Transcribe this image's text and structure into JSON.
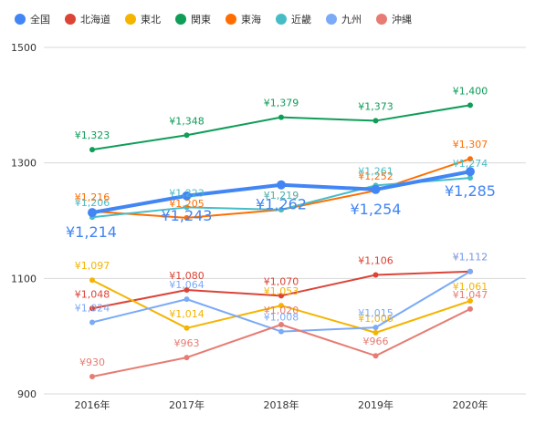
{
  "chart_data": {
    "type": "line",
    "x": [
      "2016年",
      "2017年",
      "2018年",
      "2019年",
      "2020年"
    ],
    "ylim": [
      900,
      1500
    ],
    "yticks": [
      "900",
      "1100",
      "1300",
      "1500"
    ],
    "grid": true,
    "legend_position": "top",
    "series": [
      {
        "name": "全国",
        "color": "#4285f4",
        "values": [
          1214,
          1243,
          1262,
          1254,
          1285
        ],
        "labels": [
          "¥1,214",
          "¥1,243",
          "¥1,262",
          "¥1,254",
          "¥1,285"
        ],
        "emphasis": true
      },
      {
        "name": "北海道",
        "color": "#db4437",
        "values": [
          1048,
          1080,
          1070,
          1106,
          1112
        ],
        "labels": [
          "¥1,048",
          "¥1,080",
          "¥1,070",
          "¥1,106",
          "¥1,112"
        ]
      },
      {
        "name": "東北",
        "color": "#f4b400",
        "values": [
          1097,
          1014,
          1053,
          1006,
          1061
        ],
        "labels": [
          "¥1,097",
          "¥1,014",
          "¥1,053",
          "¥1,006",
          "¥1,061"
        ]
      },
      {
        "name": "関東",
        "color": "#0f9d58",
        "values": [
          1323,
          1348,
          1379,
          1373,
          1400
        ],
        "labels": [
          "¥1,323",
          "¥1,348",
          "¥1,379",
          "¥1,373",
          "¥1,400"
        ]
      },
      {
        "name": "東海",
        "color": "#ff6d00",
        "values": [
          1216,
          1205,
          1219,
          1252,
          1307
        ],
        "labels": [
          "¥1,216",
          "¥1,205",
          "¥1,219",
          "¥1,252",
          "¥1,307"
        ]
      },
      {
        "name": "近畿",
        "color": "#46bdc6",
        "values": [
          1206,
          1223,
          1219,
          1261,
          1274
        ],
        "labels": [
          "¥1,206",
          "¥1,223",
          "¥1,219",
          "¥1,261",
          "¥1,274"
        ]
      },
      {
        "name": "九州",
        "color": "#7baaf7",
        "values": [
          1024,
          1064,
          1008,
          1015,
          1112
        ],
        "labels": [
          "¥1,024",
          "¥1,064",
          "¥1,008",
          "¥1,015",
          "¥1,112"
        ]
      },
      {
        "name": "沖縄",
        "color": "#e67c73",
        "values": [
          930,
          963,
          1020,
          966,
          1047
        ],
        "labels": [
          "¥930",
          "¥963",
          "¥1,020",
          "¥966",
          "¥1,047"
        ]
      }
    ]
  }
}
